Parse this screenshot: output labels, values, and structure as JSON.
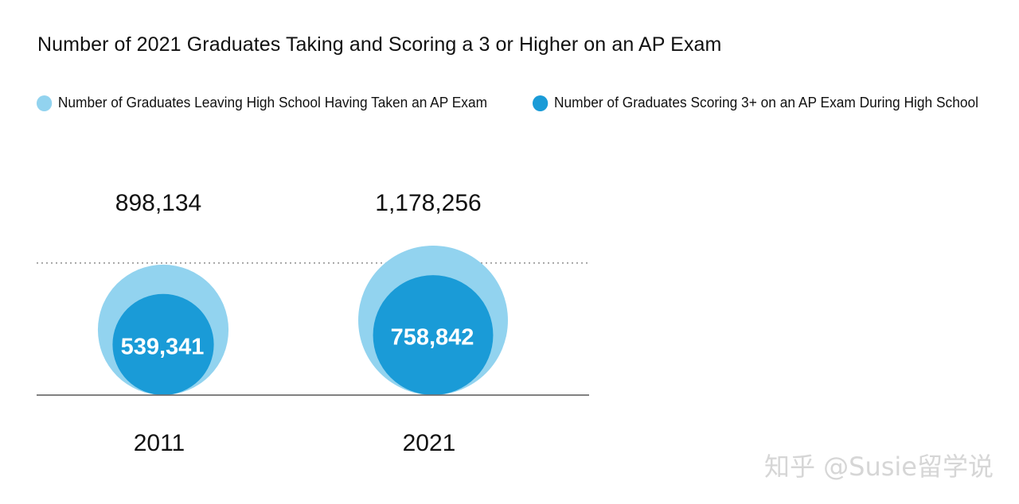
{
  "chart_data": {
    "type": "bubble",
    "title": "Number of 2021 Graduates Taking and Scoring a 3 or Higher on an AP Exam",
    "categories": [
      "2011",
      "2021"
    ],
    "series": [
      {
        "name": "Number of Graduates Leaving High School Having Taken an AP Exam",
        "values": [
          898134,
          1178256
        ],
        "labels": [
          "898,134",
          "1,178,256"
        ],
        "color": "#92D3EF"
      },
      {
        "name": "Number of Graduates Scoring 3+ on an AP Exam During High School",
        "values": [
          539341,
          758842
        ],
        "labels": [
          "539,341",
          "758,842"
        ],
        "color": "#1A9BD7"
      }
    ],
    "reference_line": "dotted"
  },
  "watermark": "知乎 @Susie留学说"
}
